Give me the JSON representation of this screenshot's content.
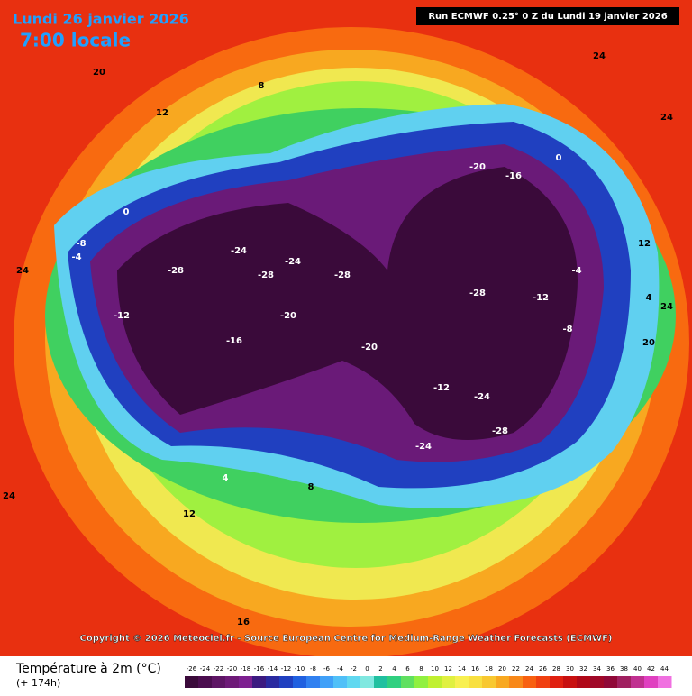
{
  "header": {
    "date": "Lundi 26 janvier 2026",
    "time": "7:00 locale",
    "run": "Run ECMWF 0.25° 0 Z du Lundi 19 janvier 2026"
  },
  "copyright": "Copyright © 2026 Meteociel.fr - Source European Centre for Medium-Range Weather Forecasts (ECMWF)",
  "legend": {
    "title": "Température à 2m (°C)",
    "subtitle": "(+ 174h)",
    "ticks": [
      -26,
      -24,
      -22,
      -20,
      -18,
      -16,
      -14,
      -12,
      -10,
      -8,
      -6,
      -4,
      -2,
      0,
      2,
      4,
      6,
      8,
      10,
      12,
      14,
      16,
      18,
      20,
      22,
      24,
      26,
      28,
      30,
      32,
      34,
      36,
      38,
      40,
      42,
      44
    ],
    "colors": [
      "#3a0a3a",
      "#4b0d4f",
      "#5e1565",
      "#6e1a78",
      "#7d2090",
      "#3c1a80",
      "#2a2aa0",
      "#2040c0",
      "#2060e0",
      "#3080f0",
      "#40a0f8",
      "#50c0f8",
      "#60d8f0",
      "#80e8e0",
      "#20c0a0",
      "#30d080",
      "#60e060",
      "#90f040",
      "#c0f030",
      "#e0f040",
      "#f8f050",
      "#f8e040",
      "#f8c830",
      "#f8a820",
      "#f88818",
      "#f86010",
      "#f04010",
      "#e02010",
      "#c81010",
      "#b00818",
      "#a00828",
      "#900838",
      "#a02060",
      "#c03090",
      "#e040c0",
      "#f070e0"
    ]
  },
  "map_labels": [
    "-28",
    "-24",
    "-28",
    "-24",
    "-28",
    "-20",
    "-16",
    "-12",
    "-8",
    "-4",
    "0",
    "4",
    "8",
    "12",
    "20",
    "24",
    "24",
    "-28",
    "-24",
    "-20",
    "-16",
    "-12",
    "-8",
    "-4",
    "0",
    "4",
    "12",
    "20",
    "24",
    "24",
    "16",
    "12",
    "8",
    "-20",
    "-24",
    "-12",
    "-28",
    "24"
  ]
}
